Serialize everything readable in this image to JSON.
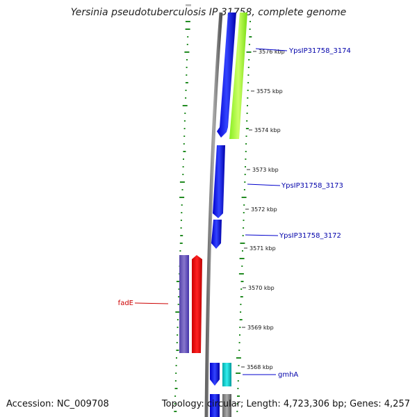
{
  "title": "Yersinia pseudotuberculosis IP 31758, complete genome",
  "footer": {
    "accession": "Accession: NC_009708",
    "info": "Topology: circular; Length: 4,723,306 bp; Genes: 4,257"
  },
  "ticks": [
    "3576 kbp",
    "3575 kbp",
    "3574 kbp",
    "3573 kbp",
    "3572 kbp",
    "3571 kbp",
    "3570 kbp",
    "3569 kbp",
    "3568 kbp"
  ],
  "genes": [
    {
      "name": "YpsIP31758_3174"
    },
    {
      "name": "YpsIP31758_3173"
    },
    {
      "name": "YpsIP31758_3172"
    },
    {
      "name": "fadE"
    },
    {
      "name": "gmhA"
    }
  ],
  "colors": {
    "forward_gene": "#0000ee",
    "rna_gene": "#99ff33",
    "reverse_gene_red": "#ff0000",
    "reverse_gene_purple": "#6655bb",
    "cyan_gene": "#00cccc",
    "backbone": "#888888",
    "gc_dots": "#228b22"
  }
}
